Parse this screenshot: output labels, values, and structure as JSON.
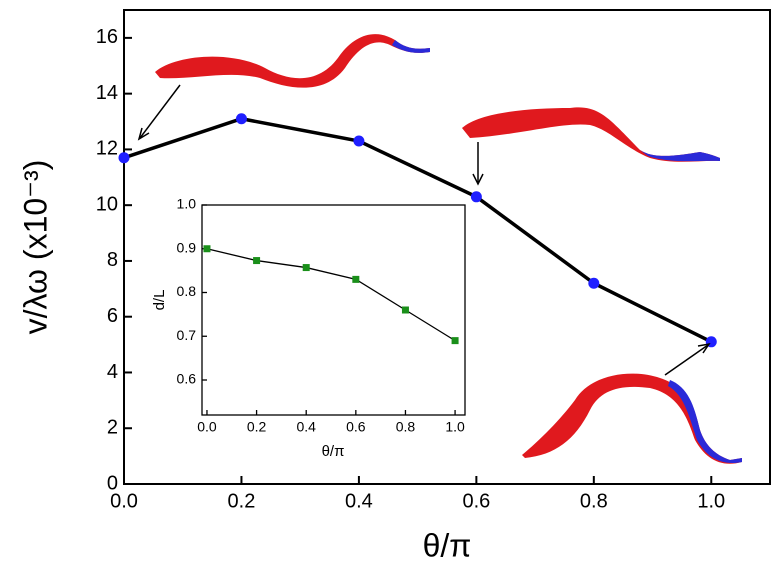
{
  "chart_data": [
    {
      "type": "line",
      "xlabel": "θ/π",
      "ylabel": "v/λω (x10⁻³)",
      "x": [
        0,
        0.2,
        0.4,
        0.6,
        0.8,
        1.0
      ],
      "values": [
        11.7,
        13.1,
        12.3,
        10.3,
        7.2,
        5.1
      ],
      "color": "#1f1fff",
      "line_color": "#000000",
      "marker": "circle",
      "xlim": [
        0,
        1.1
      ],
      "ylim": [
        0,
        17
      ],
      "xticks": [
        {
          "value": 0,
          "label": "0.0"
        },
        {
          "value": 0.2,
          "label": "0.2"
        },
        {
          "value": 0.4,
          "label": "0.4"
        },
        {
          "value": 0.6,
          "label": "0.6"
        },
        {
          "value": 0.8,
          "label": "0.8"
        },
        {
          "value": 1,
          "label": "1.0"
        }
      ],
      "yticks": [
        0,
        2,
        4,
        6,
        8,
        10,
        12,
        14,
        16
      ]
    },
    {
      "type": "line",
      "xlabel": "θ/π",
      "ylabel": "d/L",
      "x": [
        0,
        0.2,
        0.4,
        0.6,
        0.8,
        1.0
      ],
      "values": [
        0.9,
        0.873,
        0.857,
        0.83,
        0.76,
        0.69
      ],
      "color": "#1a8f1a",
      "line_color": "#000000",
      "marker": "square",
      "xlim": [
        -0.02,
        1.04
      ],
      "ylim": [
        0.52,
        1.0
      ],
      "xticks": [
        {
          "value": 0,
          "label": "0.0"
        },
        {
          "value": 0.2,
          "label": "0.2"
        },
        {
          "value": 0.4,
          "label": "0.4"
        },
        {
          "value": 0.6,
          "label": "0.6"
        },
        {
          "value": 0.8,
          "label": "0.8"
        },
        {
          "value": 1,
          "label": "1.0"
        }
      ],
      "yticks": [
        0.6,
        0.7,
        0.8,
        0.9,
        {
          "value": 1,
          "label": "1.0"
        }
      ]
    }
  ]
}
